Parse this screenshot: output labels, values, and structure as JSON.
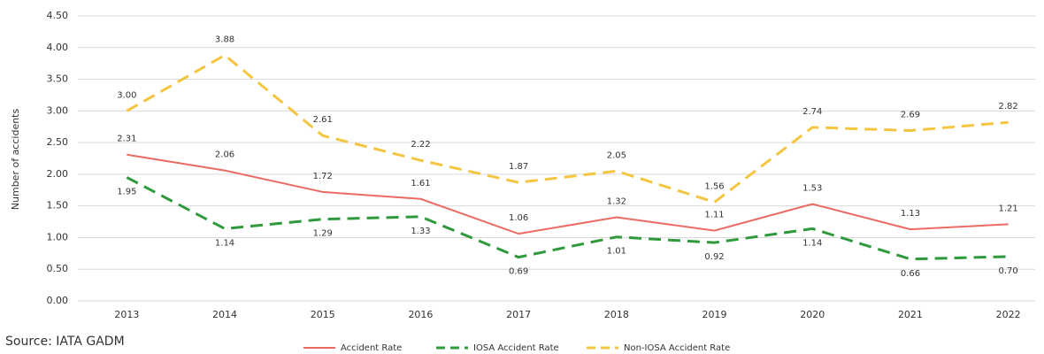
{
  "chart_data": {
    "type": "line",
    "y_label": "Number of accidents",
    "source": "Source: IATA GADM",
    "categories": [
      "2013",
      "2014",
      "2015",
      "2016",
      "2017",
      "2018",
      "2019",
      "2020",
      "2021",
      "2022"
    ],
    "series": [
      {
        "name": "Accident Rate",
        "color": "#eb6b63",
        "style": "solid",
        "values": [
          2.31,
          2.06,
          1.72,
          1.61,
          1.06,
          1.32,
          1.11,
          1.53,
          1.13,
          1.21
        ],
        "value_labels": [
          "2.31",
          "2.06",
          "1.72",
          "1.61",
          "1.06",
          "1.32",
          "1.11",
          "1.53",
          "1.13",
          "1.21"
        ],
        "label_side": "above"
      },
      {
        "name": "IOSA Accident Rate",
        "color": "#2f9a3c",
        "style": "dashed",
        "values": [
          1.95,
          1.14,
          1.29,
          1.33,
          0.69,
          1.01,
          0.92,
          1.14,
          0.66,
          0.7
        ],
        "value_labels": [
          "1.95",
          "1.14",
          "1.29",
          "1.33",
          "0.69",
          "1.01",
          "0.92",
          "1.14",
          "0.66",
          "0.70"
        ],
        "label_side": "below"
      },
      {
        "name": "Non-IOSA Accident Rate",
        "color": "#f5c542",
        "style": "dashed",
        "values": [
          3.0,
          3.88,
          2.61,
          2.22,
          1.87,
          2.05,
          1.56,
          2.74,
          2.69,
          2.82
        ],
        "value_labels": [
          "3.00",
          "3.88",
          "2.61",
          "2.22",
          "1.87",
          "2.05",
          "1.56",
          "2.74",
          "2.69",
          "2.82"
        ],
        "label_side": "above"
      }
    ],
    "ylim": [
      0,
      4.5
    ],
    "yticks": [
      {
        "value": 0,
        "label": "0.00"
      },
      {
        "value": 0.5,
        "label": "0.50"
      },
      {
        "value": 1,
        "label": "1.00"
      },
      {
        "value": 1.5,
        "label": "1.50"
      },
      {
        "value": 2,
        "label": "2.00"
      },
      {
        "value": 2.5,
        "label": "2.50"
      },
      {
        "value": 3,
        "label": "3.00"
      },
      {
        "value": 3.5,
        "label": "3.50"
      },
      {
        "value": 4,
        "label": "4.00"
      },
      {
        "value": 4.5,
        "label": "4.50"
      }
    ],
    "grid": true,
    "legend": "bottom"
  }
}
